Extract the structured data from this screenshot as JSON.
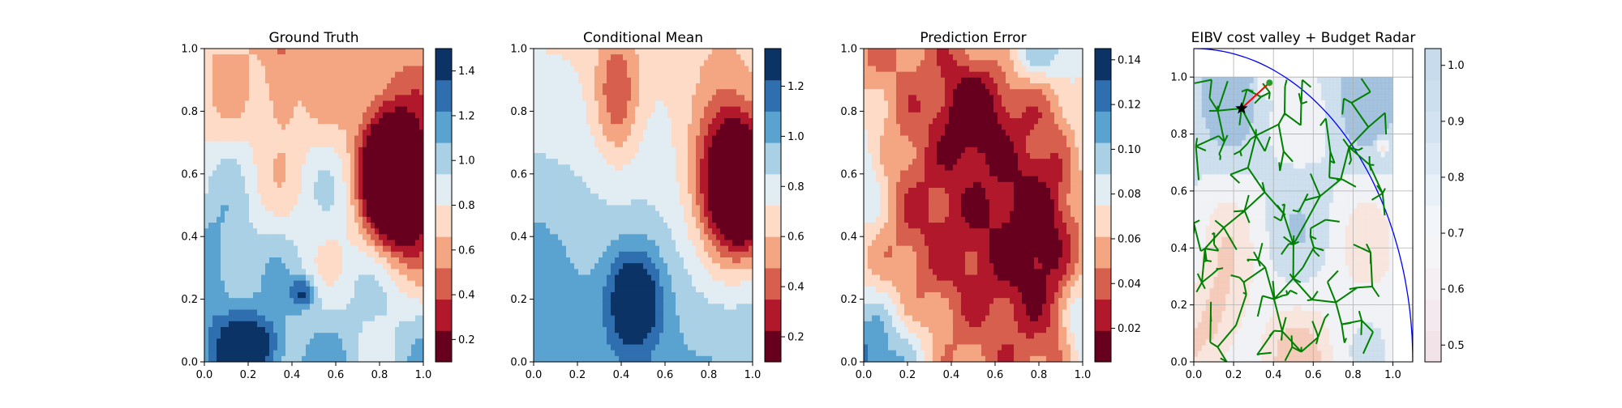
{
  "chart_data": [
    {
      "type": "heatmap",
      "title": "Ground Truth",
      "xlim": [
        0.0,
        1.0
      ],
      "ylim": [
        0.0,
        1.0
      ],
      "xticks": [
        "0.0",
        "0.2",
        "0.4",
        "0.6",
        "0.8",
        "1.0"
      ],
      "yticks": [
        "0.0",
        "0.2",
        "0.4",
        "0.6",
        "0.8",
        "1.0"
      ],
      "colormap": "RdBu",
      "colorbar_range": [
        0.1,
        1.5
      ],
      "colorbar_ticks": [
        "0.2",
        "0.4",
        "0.6",
        "0.8",
        "1.0",
        "1.2",
        "1.4"
      ],
      "features": [
        {
          "kind": "low",
          "x": 0.93,
          "y": 0.55,
          "value": 0.1
        },
        {
          "kind": "high",
          "x": 0.22,
          "y": 0.07,
          "value": 1.45
        },
        {
          "kind": "high",
          "x": 0.45,
          "y": 0.22,
          "value": 1.3
        },
        {
          "kind": "mid-low",
          "x": 0.35,
          "y": 0.85,
          "value": 0.65
        }
      ]
    },
    {
      "type": "heatmap",
      "title": "Conditional Mean",
      "xlim": [
        0.0,
        1.0
      ],
      "ylim": [
        0.0,
        1.0
      ],
      "xticks": [
        "0.0",
        "0.2",
        "0.4",
        "0.6",
        "0.8",
        "1.0"
      ],
      "yticks": [
        "0.0",
        "0.2",
        "0.4",
        "0.6",
        "0.8",
        "1.0"
      ],
      "colormap": "RdBu",
      "colorbar_range": [
        0.1,
        1.35
      ],
      "colorbar_ticks": [
        "0.2",
        "0.4",
        "0.6",
        "0.8",
        "1.0",
        "1.2"
      ],
      "features": [
        {
          "kind": "low",
          "x": 0.95,
          "y": 0.55,
          "value": 0.1
        },
        {
          "kind": "high",
          "x": 0.45,
          "y": 0.2,
          "value": 1.3
        },
        {
          "kind": "mid-low",
          "x": 0.38,
          "y": 0.85,
          "value": 0.7
        }
      ]
    },
    {
      "type": "heatmap",
      "title": "Prediction Error",
      "xlim": [
        0.0,
        1.0
      ],
      "ylim": [
        0.0,
        1.0
      ],
      "xticks": [
        "0.0",
        "0.2",
        "0.4",
        "0.6",
        "0.8",
        "1.0"
      ],
      "yticks": [
        "0.0",
        "0.2",
        "0.4",
        "0.6",
        "0.8",
        "1.0"
      ],
      "colormap": "RdBu",
      "colorbar_range": [
        0.005,
        0.145
      ],
      "colorbar_ticks": [
        "0.02",
        "0.04",
        "0.06",
        "0.08",
        "0.10",
        "0.12",
        "0.14"
      ],
      "features": [
        {
          "kind": "high",
          "x": 0.0,
          "y": 0.0,
          "value": 0.14
        },
        {
          "kind": "high",
          "x": 0.0,
          "y": 0.6,
          "value": 0.1
        },
        {
          "kind": "high",
          "x": 0.85,
          "y": 1.0,
          "value": 0.11
        },
        {
          "kind": "high",
          "x": 1.0,
          "y": 0.1,
          "value": 0.1
        },
        {
          "kind": "low",
          "x": 0.5,
          "y": 0.45,
          "value": 0.01
        }
      ]
    },
    {
      "type": "scatter",
      "title": "EIBV cost valley + Budget Radar",
      "xlim": [
        0.0,
        1.1
      ],
      "ylim": [
        0.0,
        1.1
      ],
      "xticks": [
        "0.0",
        "0.2",
        "0.4",
        "0.6",
        "0.8",
        "1.0"
      ],
      "yticks": [
        "0.0",
        "0.2",
        "0.4",
        "0.6",
        "0.8",
        "1.0"
      ],
      "grid": true,
      "colormap": "RdBu",
      "colorbar_range": [
        0.47,
        1.03
      ],
      "colorbar_ticks": [
        "0.5",
        "0.6",
        "0.7",
        "0.8",
        "0.9",
        "1.0"
      ],
      "current_location": {
        "x": 0.24,
        "y": 0.89
      },
      "previous_location": {
        "x": 0.38,
        "y": 0.98
      },
      "budget_radar": {
        "center": [
          0.0,
          0.0
        ],
        "radius": 1.1,
        "color": "#0000ff"
      },
      "tree_color": "#008000",
      "path_color": "#ff0000"
    }
  ]
}
